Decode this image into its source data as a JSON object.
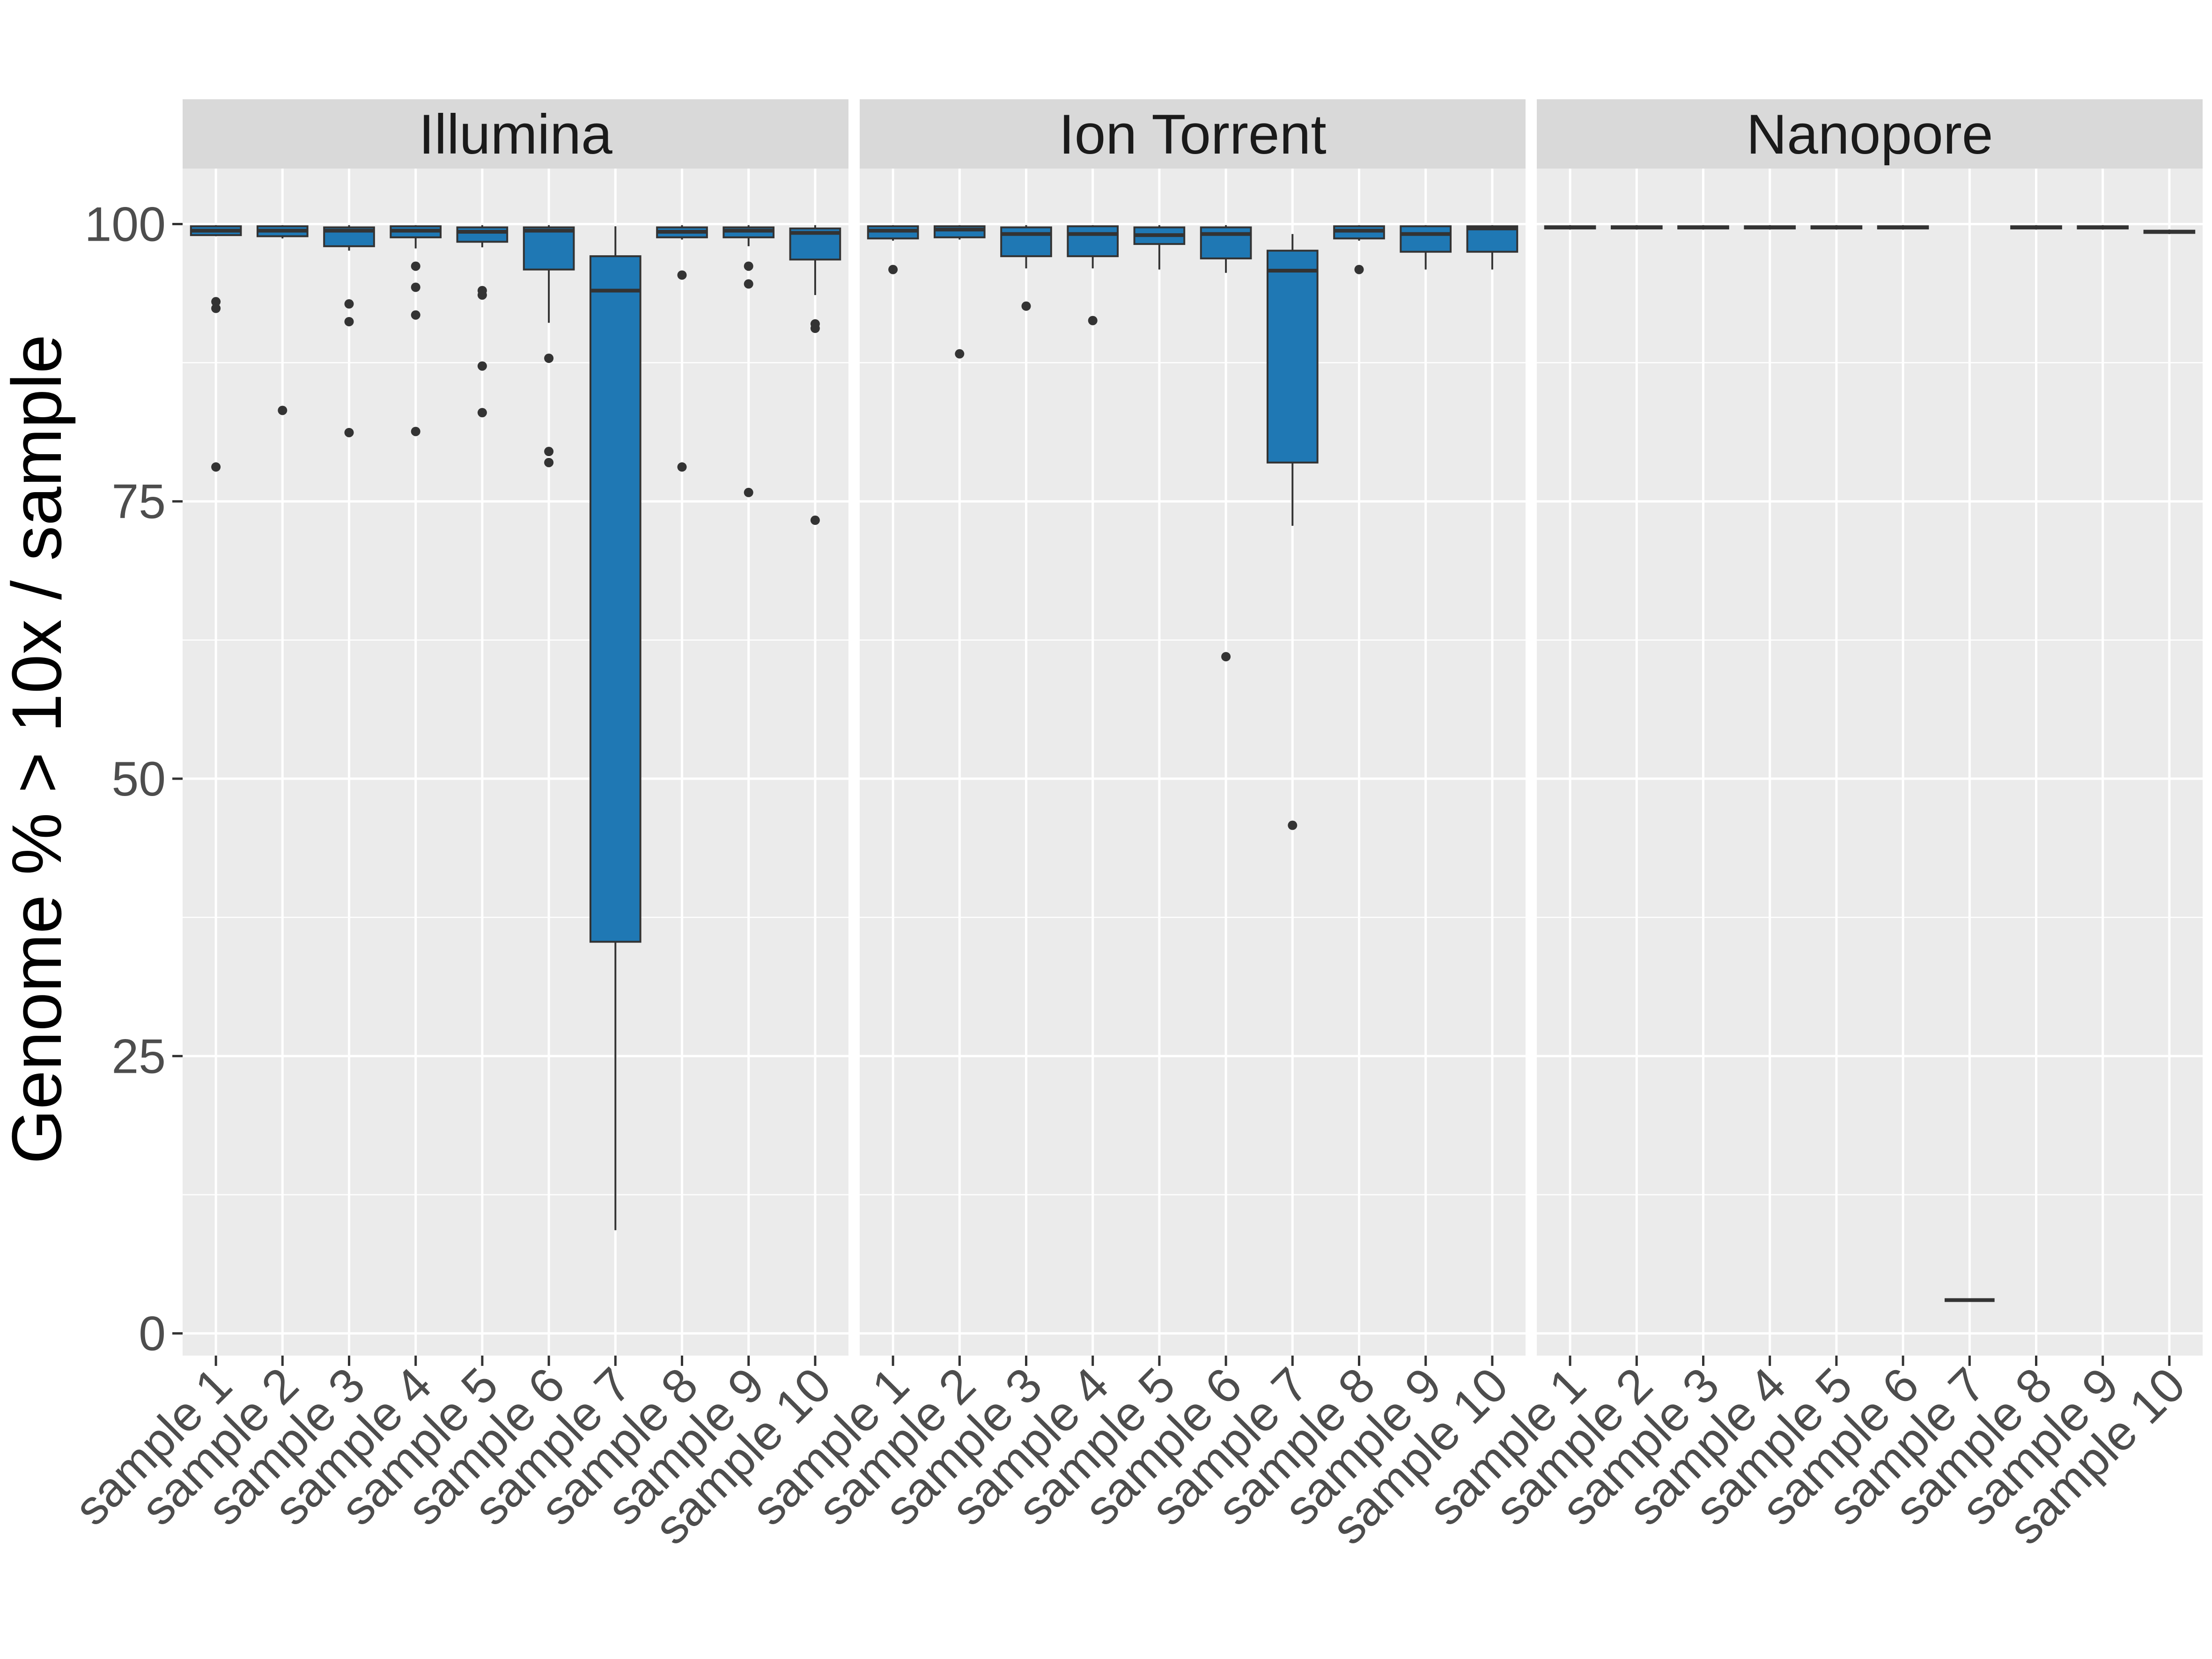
{
  "chart_data": {
    "type": "boxplot",
    "facet_by": "platform",
    "ylabel": "Genome % > 10x / sample",
    "xlabel": "",
    "ylim": [
      -2,
      105
    ],
    "yticks": [
      0,
      25,
      50,
      75,
      100
    ],
    "grid": true,
    "legend": "none",
    "box_fill": "#1F78B4",
    "categories": [
      "sample 1",
      "sample 2",
      "sample 3",
      "sample 4",
      "sample 5",
      "sample 6",
      "sample 7",
      "sample 8",
      "sample 9",
      "sample 10"
    ],
    "panels": [
      {
        "title": "Illumina",
        "boxes": [
          {
            "q1": 99.0,
            "median": 99.4,
            "q3": 99.8,
            "lower": 98.9,
            "upper": 99.9,
            "outliers": [
              93.0,
              92.4,
              78.1
            ]
          },
          {
            "q1": 98.9,
            "median": 99.4,
            "q3": 99.8,
            "lower": 98.7,
            "upper": 99.9,
            "outliers": [
              83.2
            ]
          },
          {
            "q1": 98.0,
            "median": 99.4,
            "q3": 99.7,
            "lower": 97.6,
            "upper": 99.9,
            "outliers": [
              92.8,
              91.2,
              81.2
            ]
          },
          {
            "q1": 98.8,
            "median": 99.4,
            "q3": 99.8,
            "lower": 97.8,
            "upper": 99.9,
            "outliers": [
              96.2,
              94.3,
              91.8,
              81.3
            ]
          },
          {
            "q1": 98.4,
            "median": 99.3,
            "q3": 99.7,
            "lower": 97.9,
            "upper": 99.9,
            "outliers": [
              94.0,
              93.6,
              87.2,
              83.0
            ]
          },
          {
            "q1": 95.9,
            "median": 99.4,
            "q3": 99.7,
            "lower": 91.1,
            "upper": 99.9,
            "outliers": [
              87.9,
              79.5,
              78.5
            ]
          },
          {
            "q1": 35.3,
            "median": 94.0,
            "q3": 97.1,
            "lower": 9.3,
            "upper": 99.8,
            "outliers": []
          },
          {
            "q1": 98.8,
            "median": 99.3,
            "q3": 99.7,
            "lower": 98.6,
            "upper": 99.9,
            "outliers": [
              95.4,
              78.1
            ]
          },
          {
            "q1": 98.8,
            "median": 99.4,
            "q3": 99.7,
            "lower": 98.0,
            "upper": 99.9,
            "outliers": [
              96.2,
              94.6,
              75.8
            ]
          },
          {
            "q1": 96.8,
            "median": 99.2,
            "q3": 99.6,
            "lower": 93.6,
            "upper": 99.9,
            "outliers": [
              91.0,
              90.6,
              73.3
            ]
          }
        ]
      },
      {
        "title": "Ion Torrent",
        "boxes": [
          {
            "q1": 98.7,
            "median": 99.4,
            "q3": 99.8,
            "lower": 98.5,
            "upper": 99.9,
            "outliers": [
              95.9
            ]
          },
          {
            "q1": 98.8,
            "median": 99.5,
            "q3": 99.8,
            "lower": 98.6,
            "upper": 99.9,
            "outliers": [
              88.3
            ]
          },
          {
            "q1": 97.1,
            "median": 99.1,
            "q3": 99.7,
            "lower": 96.0,
            "upper": 99.9,
            "outliers": [
              92.6
            ]
          },
          {
            "q1": 97.1,
            "median": 99.1,
            "q3": 99.8,
            "lower": 96.0,
            "upper": 99.9,
            "outliers": [
              91.3
            ]
          },
          {
            "q1": 98.2,
            "median": 99.0,
            "q3": 99.7,
            "lower": 95.9,
            "upper": 99.9,
            "outliers": []
          },
          {
            "q1": 96.9,
            "median": 99.1,
            "q3": 99.7,
            "lower": 95.6,
            "upper": 99.9,
            "outliers": [
              61.0
            ]
          },
          {
            "q1": 78.5,
            "median": 95.8,
            "q3": 97.6,
            "lower": 72.8,
            "upper": 99.1,
            "outliers": [
              45.8
            ]
          },
          {
            "q1": 98.7,
            "median": 99.4,
            "q3": 99.8,
            "lower": 98.5,
            "upper": 99.9,
            "outliers": [
              95.9
            ]
          },
          {
            "q1": 97.5,
            "median": 99.1,
            "q3": 99.8,
            "lower": 95.9,
            "upper": 99.9,
            "outliers": []
          },
          {
            "q1": 97.5,
            "median": 99.6,
            "q3": 99.8,
            "lower": 95.9,
            "upper": 99.9,
            "outliers": []
          }
        ]
      },
      {
        "title": "Nanopore",
        "boxes": [
          {
            "q1": 99.6,
            "median": 99.7,
            "q3": 99.8,
            "lower": 99.5,
            "upper": 99.9,
            "outliers": []
          },
          {
            "q1": 99.6,
            "median": 99.7,
            "q3": 99.8,
            "lower": 99.5,
            "upper": 99.9,
            "outliers": []
          },
          {
            "q1": 99.6,
            "median": 99.7,
            "q3": 99.8,
            "lower": 99.5,
            "upper": 99.9,
            "outliers": []
          },
          {
            "q1": 99.6,
            "median": 99.7,
            "q3": 99.8,
            "lower": 99.5,
            "upper": 99.9,
            "outliers": []
          },
          {
            "q1": 99.6,
            "median": 99.7,
            "q3": 99.8,
            "lower": 99.5,
            "upper": 99.9,
            "outliers": []
          },
          {
            "q1": 99.6,
            "median": 99.7,
            "q3": 99.8,
            "lower": 99.5,
            "upper": 99.9,
            "outliers": []
          },
          {
            "q1": 3.0,
            "median": 3.0,
            "q3": 3.0,
            "lower": 3.0,
            "upper": 3.0,
            "outliers": []
          },
          {
            "q1": 99.6,
            "median": 99.7,
            "q3": 99.8,
            "lower": 99.5,
            "upper": 99.9,
            "outliers": []
          },
          {
            "q1": 99.6,
            "median": 99.7,
            "q3": 99.8,
            "lower": 99.5,
            "upper": 99.9,
            "outliers": []
          },
          {
            "q1": 99.2,
            "median": 99.3,
            "q3": 99.4,
            "lower": 99.1,
            "upper": 99.5,
            "outliers": []
          }
        ]
      }
    ]
  }
}
